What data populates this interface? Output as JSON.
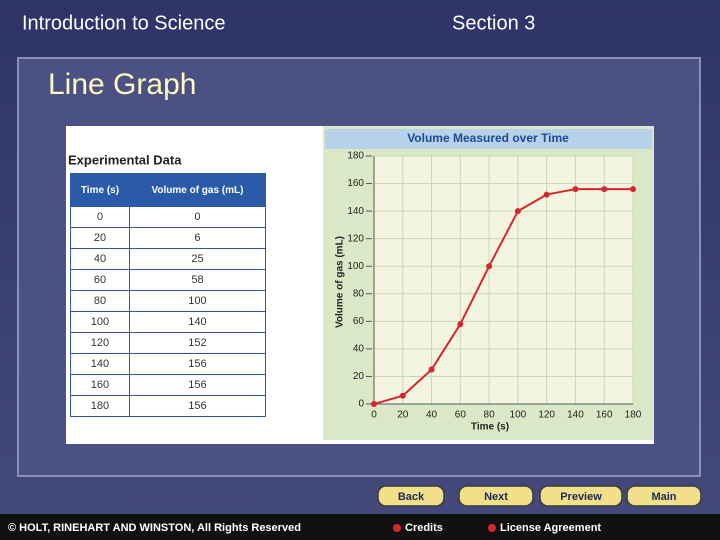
{
  "header": {
    "course": "Introduction to Science",
    "section": "Section 3"
  },
  "slide_title": "Line Graph",
  "table": {
    "title": "Experimental Data",
    "columns": [
      "Time (s)",
      "Volume of gas (mL)"
    ],
    "rows": [
      [
        0,
        0
      ],
      [
        20,
        6
      ],
      [
        40,
        25
      ],
      [
        60,
        58
      ],
      [
        80,
        100
      ],
      [
        100,
        140
      ],
      [
        120,
        152
      ],
      [
        140,
        156
      ],
      [
        160,
        156
      ],
      [
        180,
        156
      ]
    ]
  },
  "chart_data": {
    "type": "line",
    "title": "Volume Measured over Time",
    "x_label": "Time (s)",
    "y_label": "Volume of gas (mL)",
    "x": [
      0,
      20,
      40,
      60,
      80,
      100,
      120,
      140,
      160,
      180
    ],
    "values": [
      0,
      6,
      25,
      58,
      100,
      140,
      152,
      156,
      156,
      156
    ],
    "color": "#d7262e",
    "xlim": [
      0,
      180
    ],
    "ylim": [
      0,
      180
    ],
    "xticks": [
      0,
      20,
      40,
      60,
      80,
      100,
      120,
      140,
      160,
      180
    ],
    "yticks": [
      0,
      20,
      40,
      60,
      80,
      100,
      120,
      140,
      160,
      180
    ],
    "grid": true
  },
  "nav": {
    "buttons": [
      "Back",
      "Next",
      "Preview",
      "Main"
    ]
  },
  "footer": {
    "copyright": "© HOLT, RINEHART AND WINSTON, All Rights Reserved",
    "links": [
      "Credits",
      "License Agreement"
    ]
  }
}
